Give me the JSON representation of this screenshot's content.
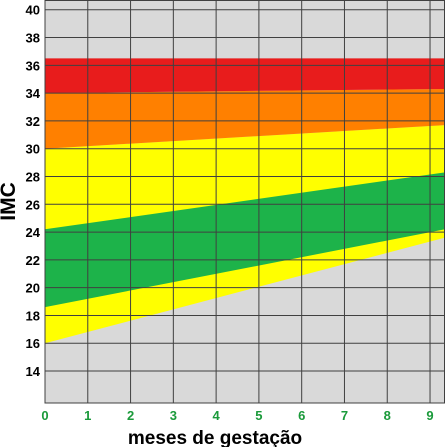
{
  "chart_data": {
    "type": "area",
    "title": "",
    "xlabel": "meses de gestação",
    "ylabel": "IMC",
    "xlim": [
      0,
      9.35
    ],
    "ylim": [
      11.7,
      40.7
    ],
    "x_ticks": [
      "0",
      "1",
      "2",
      "3",
      "4",
      "5",
      "6",
      "7",
      "8",
      "9"
    ],
    "y_ticks": [
      "14",
      "16",
      "18",
      "20",
      "22",
      "24",
      "26",
      "28",
      "30",
      "32",
      "34",
      "36",
      "38",
      "40"
    ],
    "grid": true,
    "bands": [
      {
        "color": "#ffff00",
        "x": [
          0,
          9.35
        ],
        "upper": [
          30,
          31.7
        ],
        "lower": [
          16,
          23.6
        ]
      },
      {
        "color": "#1db34a",
        "x": [
          0,
          9.35
        ],
        "upper": [
          24.2,
          28.3
        ],
        "lower": [
          18.6,
          24.2
        ]
      },
      {
        "color": "#ff8000",
        "x": [
          0,
          9.35
        ],
        "upper": [
          34,
          34.3
        ],
        "lower": [
          30,
          31.7
        ]
      },
      {
        "color": "#e81c1c",
        "x": [
          0,
          9.35
        ],
        "upper": [
          36.5,
          36.5
        ],
        "lower": [
          34,
          34.3
        ]
      }
    ],
    "colors": {
      "background": "#d9d9d9",
      "grid": "#404040",
      "x_tick_text": "#1a9a3a",
      "text": "#000000"
    }
  }
}
